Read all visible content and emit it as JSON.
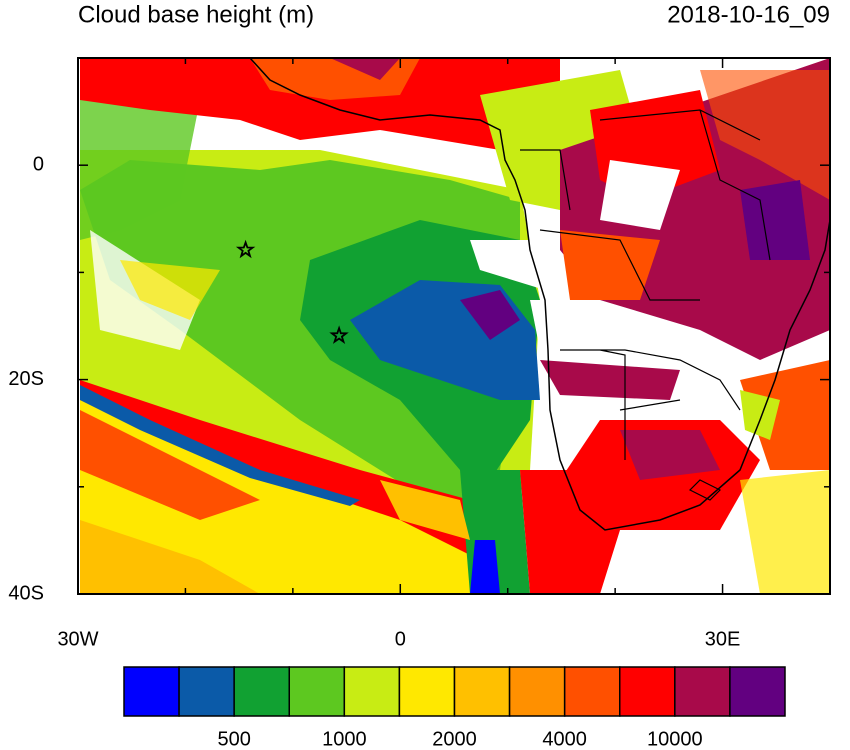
{
  "title": "Cloud base height (m)",
  "timestamp": "2018-10-16_09",
  "map": {
    "xlim": [
      -30,
      40
    ],
    "ylim": [
      -40,
      10
    ],
    "xticks": [
      {
        "value": -30,
        "label": "30W"
      },
      {
        "value": 0,
        "label": "0"
      },
      {
        "value": 30,
        "label": "30E"
      }
    ],
    "xminorticks": [
      -20,
      -10,
      10,
      20,
      40
    ],
    "yticks": [
      {
        "value": 0,
        "label": "0"
      },
      {
        "value": -20,
        "label": "20S"
      },
      {
        "value": -40,
        "label": "40S"
      }
    ],
    "yminorticks": [
      -10,
      -30,
      10
    ],
    "markers": [
      {
        "lon": -14.4,
        "lat": -7.9
      },
      {
        "lon": -5.7,
        "lat": -15.9
      }
    ]
  },
  "colorbar": {
    "colors": [
      "#0000ff",
      "#0b5aa8",
      "#11a132",
      "#5dc820",
      "#c8ec14",
      "#ffe800",
      "#ffc000",
      "#ff9000",
      "#ff5000",
      "#ff0000",
      "#a80a4a",
      "#620080"
    ],
    "labels": [
      500,
      1000,
      2000,
      4000,
      10000
    ]
  }
}
